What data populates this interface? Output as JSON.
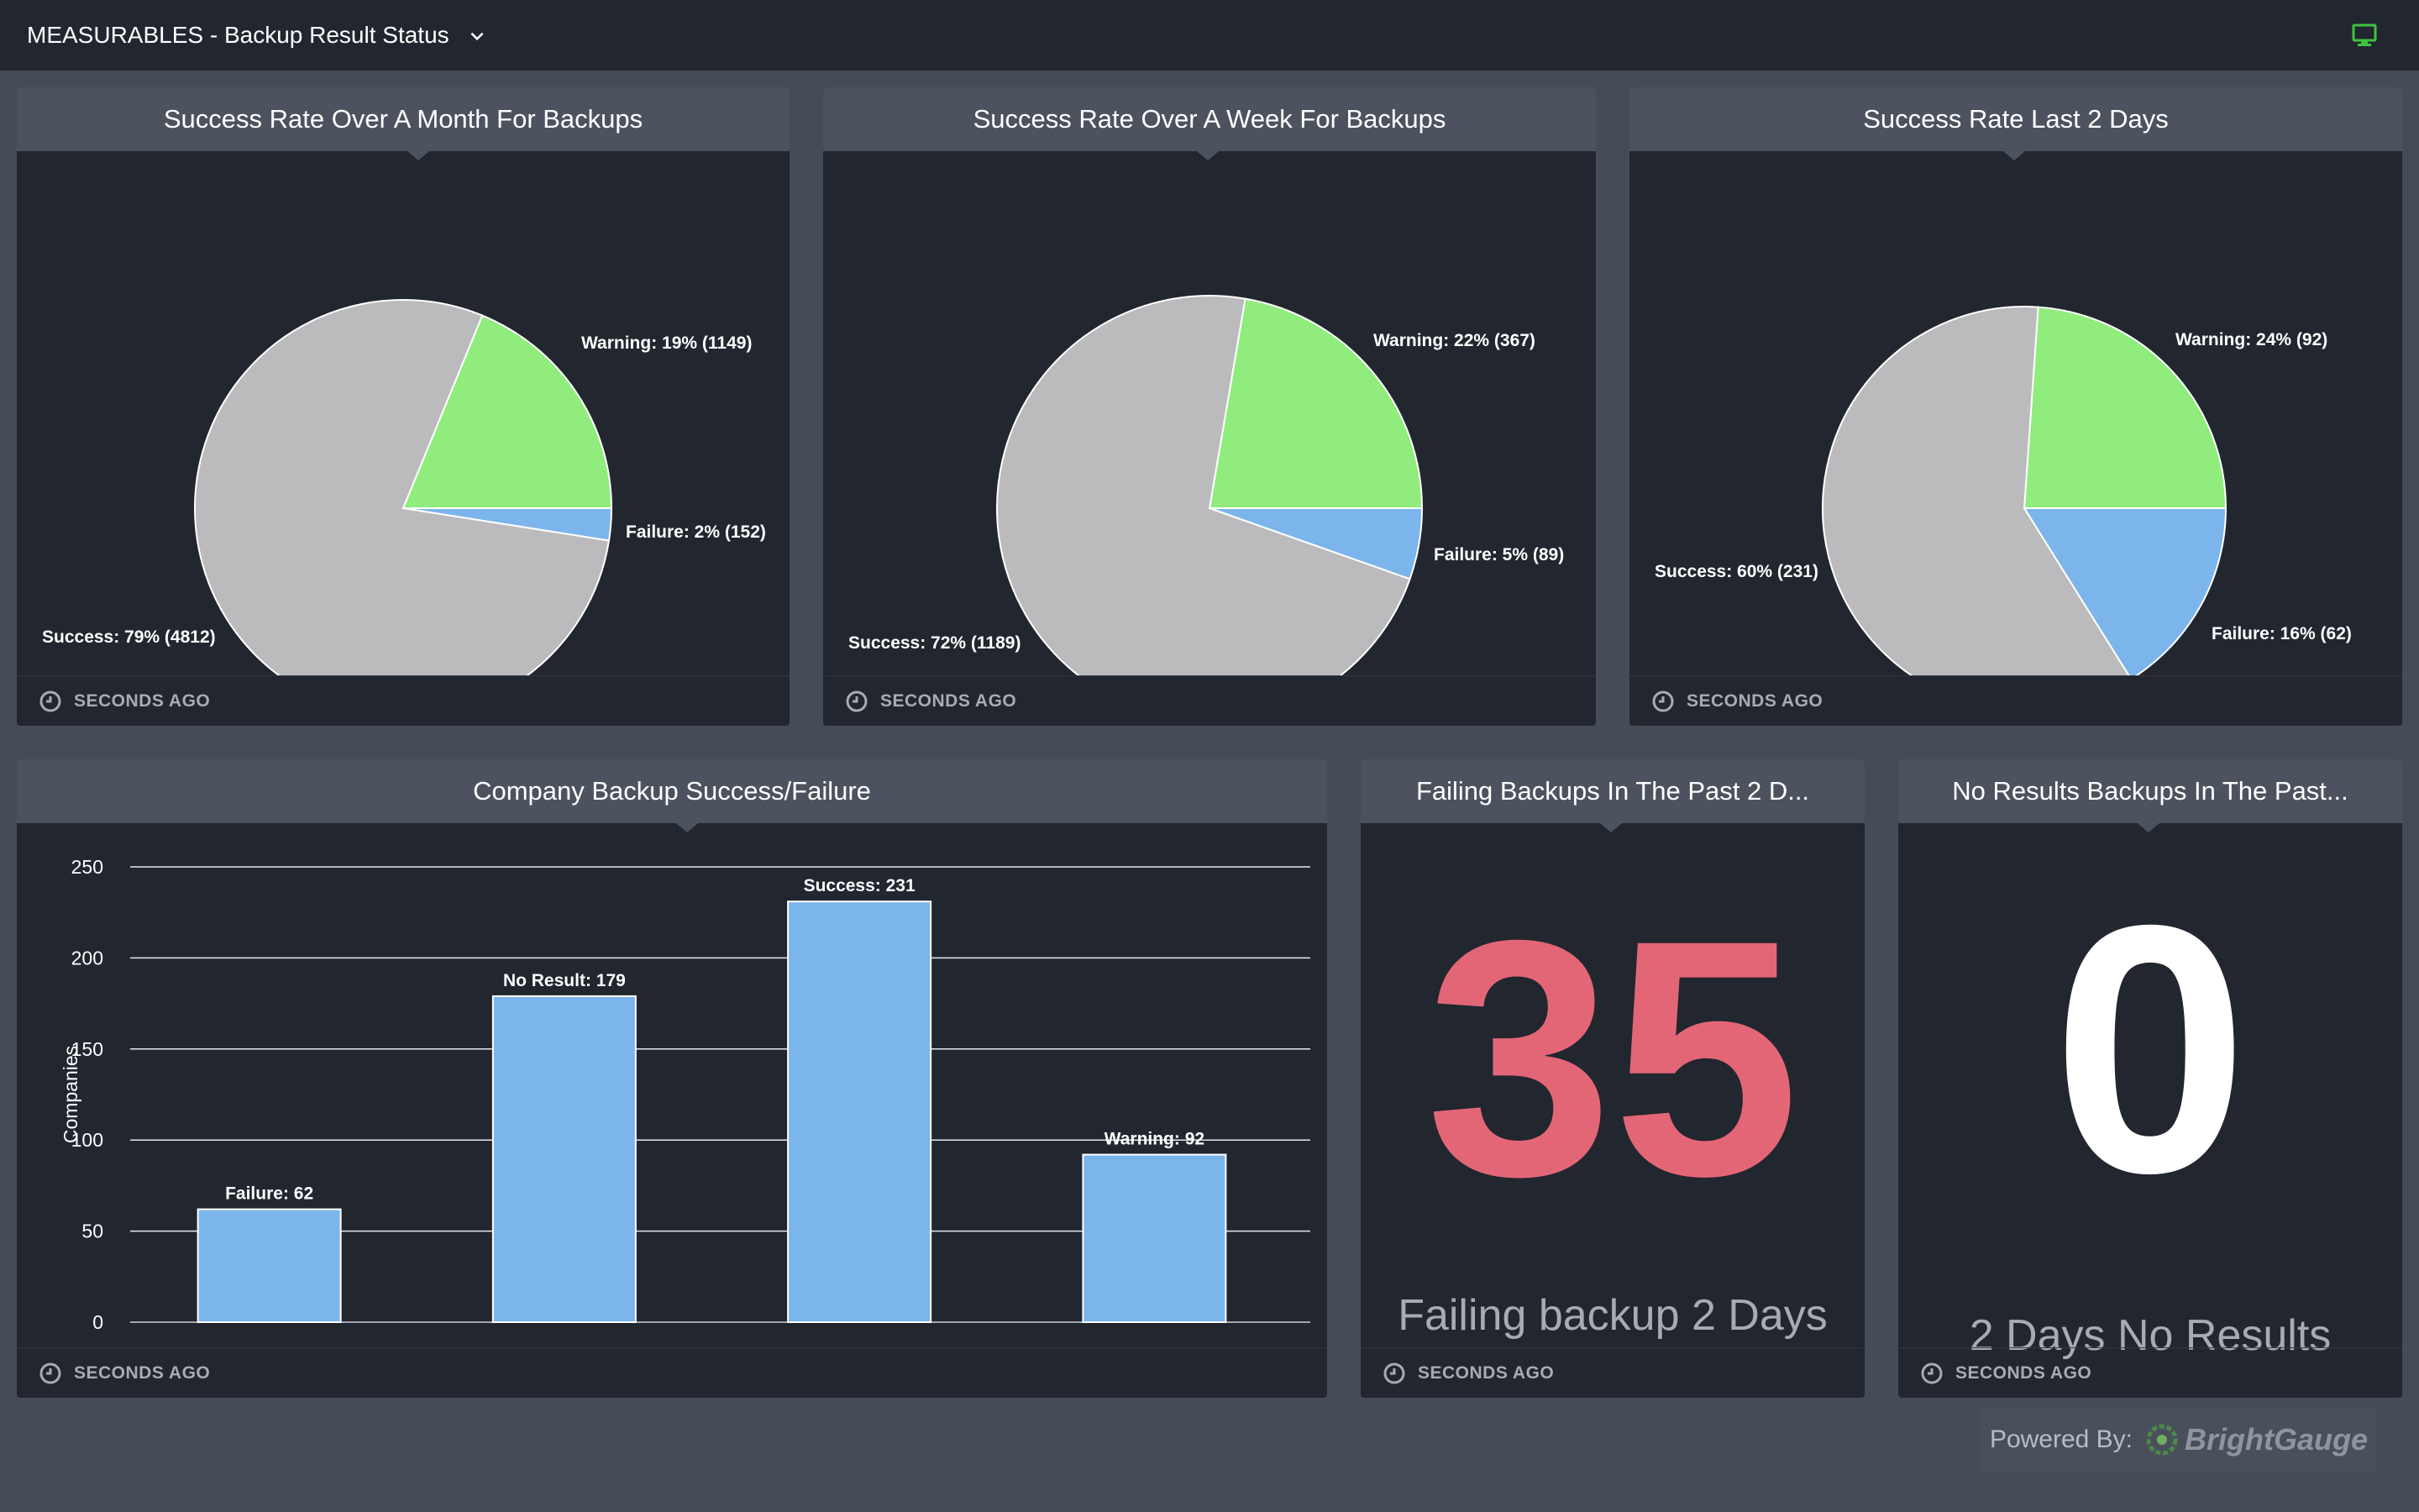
{
  "header": {
    "title": "MEASURABLES - Backup Result Status",
    "dropdown_icon": "chevron-down-icon",
    "status_icon": "monitor-icon",
    "status_color": "#3ec43e"
  },
  "colors": {
    "success": "#bbbbbd",
    "warning": "#90ec7d",
    "failure": "#7cb5ec",
    "big_number_red": "#e36677",
    "footer_text": "#a7abb3"
  },
  "widgets": {
    "month": {
      "title": "Success Rate Over A Month For Backups",
      "footer": "SECONDS AGO",
      "chart_data": {
        "type": "pie",
        "slices": [
          {
            "label": "Warning: 19% (1149)",
            "value": 1149,
            "color": "#90ec7d"
          },
          {
            "label": "Failure: 2% (152)",
            "value": 152,
            "color": "#7cb5ec"
          },
          {
            "label": "Success: 79% (4812)",
            "value": 4812,
            "color": "#bbbbbd"
          }
        ]
      }
    },
    "week": {
      "title": "Success Rate Over A Week For Backups",
      "footer": "SECONDS AGO",
      "chart_data": {
        "type": "pie",
        "slices": [
          {
            "label": "Warning: 22% (367)",
            "value": 367,
            "color": "#90ec7d"
          },
          {
            "label": "Failure: 5% (89)",
            "value": 89,
            "color": "#7cb5ec"
          },
          {
            "label": "Success: 72% (1189)",
            "value": 1189,
            "color": "#bbbbbd"
          }
        ]
      }
    },
    "twodays": {
      "title": "Success Rate Last 2 Days",
      "footer": "SECONDS AGO",
      "chart_data": {
        "type": "pie",
        "slices": [
          {
            "label": "Warning: 24% (92)",
            "value": 92,
            "color": "#90ec7d"
          },
          {
            "label": "Failure: 16% (62)",
            "value": 62,
            "color": "#7cb5ec"
          },
          {
            "label": "Success: 60% (231)",
            "value": 231,
            "color": "#bbbbbd"
          }
        ]
      }
    },
    "company": {
      "title": "Company Backup Success/Failure",
      "footer": "SECONDS AGO",
      "chart_data": {
        "type": "bar",
        "categories": [
          "Failure",
          "No Result",
          "Success",
          "Warning"
        ],
        "values": [
          62,
          179,
          231,
          92
        ],
        "data_labels": [
          "Failure: 62",
          "No Result: 179",
          "Success: 231",
          "Warning: 92"
        ],
        "ylabel": "Companies",
        "yticks": [
          0,
          50,
          100,
          150,
          200,
          250
        ],
        "ylim": [
          0,
          250
        ],
        "grid": true,
        "bar_color": "#7cb5ec"
      }
    },
    "failing": {
      "title": "Failing Backups In The Past 2 D...",
      "value": "35",
      "label": "Failing backup 2 Days",
      "footer": "SECONDS AGO"
    },
    "noresults": {
      "title": "No Results Backups In The Past...",
      "value": "0",
      "label": "2 Days No Results",
      "footer": "SECONDS AGO"
    }
  },
  "powered": {
    "prefix": "Powered By:",
    "brand": "BrightGauge"
  }
}
